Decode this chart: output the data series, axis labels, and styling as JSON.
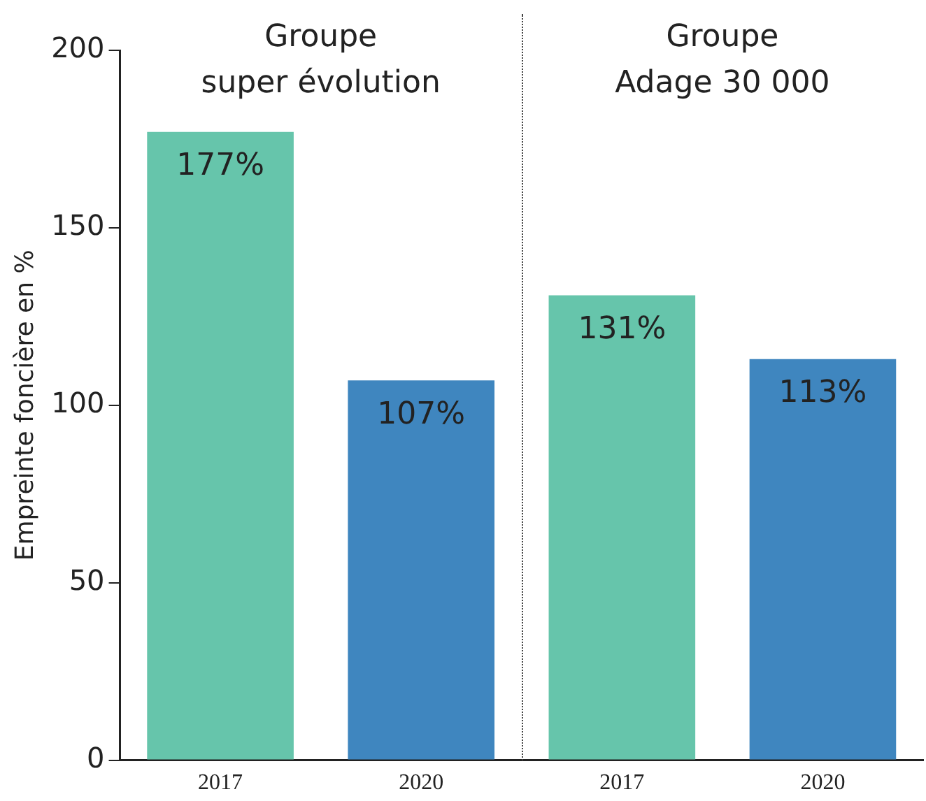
{
  "chart_data": {
    "type": "bar",
    "ylabel": "Empreinte foncière en %",
    "categories": [
      "2017",
      "2020",
      "2017",
      "2020"
    ],
    "values": [
      177,
      107,
      131,
      113
    ],
    "colors": [
      "#66c5ab",
      "#3f86bf",
      "#66c5ab",
      "#3f86bf"
    ],
    "value_labels": [
      "177%",
      "107%",
      "131%",
      "113%"
    ],
    "annotations": [
      "Groupe\nsuper évolution",
      "Groupe\nAdage 30 000"
    ],
    "ylim": [
      0,
      200
    ],
    "yticks": [
      0,
      50,
      100,
      150,
      200
    ],
    "grid": false,
    "legend": false
  }
}
